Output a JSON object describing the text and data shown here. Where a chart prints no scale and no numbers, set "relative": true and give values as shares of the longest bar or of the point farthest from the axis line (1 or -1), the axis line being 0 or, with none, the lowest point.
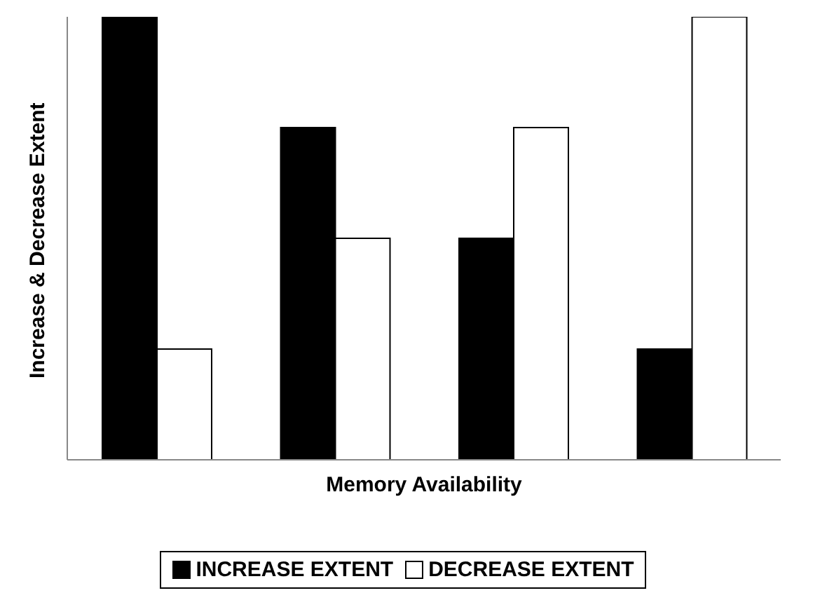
{
  "chart_data": {
    "type": "bar",
    "relative": true,
    "xlabel": "Memory Availability",
    "ylabel": "Increase & Decrease Extent",
    "categories": [
      null,
      null,
      null,
      null
    ],
    "series": [
      {
        "name": "INCREASE EXTENT",
        "color": "#000000",
        "values": [
          1,
          0.75,
          0.5,
          0.25
        ]
      },
      {
        "name": "DECREASE EXTENT",
        "color": "#ffffff",
        "values": [
          0.25,
          0.5,
          0.75,
          1
        ]
      }
    ],
    "legend": "bottom",
    "grid": false
  }
}
